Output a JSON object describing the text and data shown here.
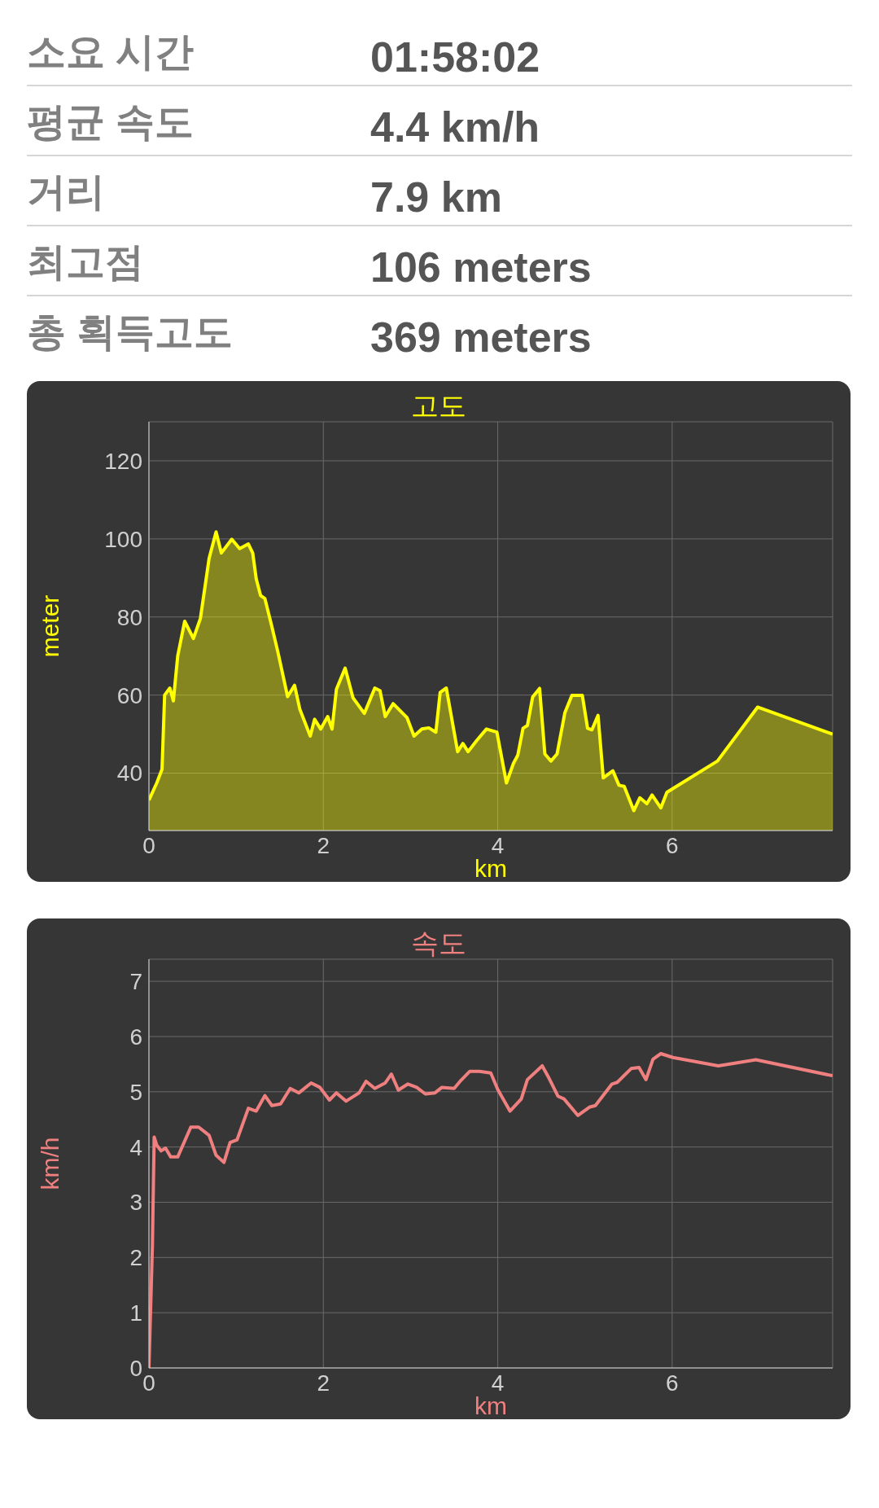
{
  "chart_data": [
    {
      "type": "other",
      "annotations": [
        "소요 시간",
        "01:58:02",
        "평균 속도",
        "4.4 km/h",
        "거리",
        "7.9 km",
        "최고점",
        "106 meters",
        "총 획득고도",
        "369 meters"
      ]
    },
    {
      "type": "area",
      "title": "고도",
      "xlabel": "km",
      "ylabel": "meter",
      "xlim": [
        0,
        7.84
      ],
      "xticks": [
        0,
        2,
        4,
        6
      ],
      "ylim": [
        25.3,
        130
      ],
      "yticks": [
        40,
        60,
        80,
        100,
        120
      ],
      "grid": true,
      "x": [
        0,
        0.09,
        0.15,
        0.18,
        0.24,
        0.28,
        0.33,
        0.41,
        0.51,
        0.59,
        0.69,
        0.77,
        0.83,
        0.95,
        1.04,
        1.14,
        1.19,
        1.23,
        1.28,
        1.33,
        1.41,
        1.48,
        1.59,
        1.67,
        1.73,
        1.85,
        1.9,
        1.97,
        2.05,
        2.1,
        2.15,
        2.25,
        2.34,
        2.47,
        2.59,
        2.65,
        2.71,
        2.8,
        2.96,
        3.04,
        3.13,
        3.21,
        3.29,
        3.34,
        3.41,
        3.54,
        3.6,
        3.66,
        3.76,
        3.87,
        3.99,
        4.1,
        4.18,
        4.23,
        4.29,
        4.34,
        4.4,
        4.48,
        4.54,
        4.61,
        4.68,
        4.77,
        4.85,
        4.97,
        5.03,
        5.08,
        5.15,
        5.21,
        5.32,
        5.39,
        5.45,
        5.56,
        5.63,
        5.71,
        5.77,
        5.87,
        5.94,
        6.52,
        6.98,
        7.84
      ],
      "series": [
        {
          "color": "#ffff00",
          "values": [
            33.1,
            37.5,
            41,
            60,
            61.8,
            58.5,
            70,
            78.9,
            74.5,
            79.6,
            95,
            101.8,
            96.4,
            99.9,
            97.5,
            98.7,
            96.4,
            89.8,
            85.5,
            84.7,
            77.5,
            70.9,
            59.6,
            62.5,
            56.4,
            49.5,
            53.8,
            51.3,
            54.5,
            51.3,
            61.5,
            66.9,
            59.3,
            55.3,
            61.8,
            61.1,
            54.5,
            57.8,
            54.2,
            49.5,
            51.3,
            51.6,
            50.5,
            60.7,
            61.8,
            45.5,
            47.6,
            45.5,
            48.4,
            51.3,
            50.5,
            37.5,
            42.5,
            44.6,
            51.5,
            52.2,
            59.5,
            61.7,
            44.9,
            43.1,
            44.9,
            55.5,
            59.9,
            59.9,
            51.5,
            51.1,
            54.8,
            38.8,
            40.6,
            36.9,
            36.6,
            30.4,
            33.7,
            32.2,
            34.4,
            31.1,
            35.1,
            43.1,
            56.9,
            50
          ]
        }
      ]
    },
    {
      "type": "line",
      "title": "속도",
      "xlabel": "km",
      "ylabel": "km/h",
      "xlim": [
        0,
        7.84
      ],
      "xticks": [
        0,
        2,
        4,
        6
      ],
      "ylim": [
        0,
        7.4
      ],
      "yticks": [
        0,
        1,
        2,
        3,
        4,
        5,
        6,
        7
      ],
      "grid": true,
      "x": [
        0,
        0.04,
        0.06,
        0.09,
        0.14,
        0.19,
        0.25,
        0.33,
        0.48,
        0.57,
        0.69,
        0.77,
        0.86,
        0.93,
        1.01,
        1.14,
        1.23,
        1.33,
        1.41,
        1.51,
        1.62,
        1.72,
        1.86,
        1.96,
        2.07,
        2.15,
        2.26,
        2.41,
        2.49,
        2.59,
        2.71,
        2.78,
        2.86,
        2.97,
        3.07,
        3.17,
        3.28,
        3.36,
        3.5,
        3.58,
        3.68,
        3.79,
        3.92,
        4,
        4.14,
        4.27,
        4.34,
        4.51,
        4.59,
        4.69,
        4.76,
        4.92,
        5.05,
        5.12,
        5.31,
        5.37,
        5.53,
        5.62,
        5.7,
        5.78,
        5.87,
        6.01,
        6.53,
        6.96,
        7.84
      ],
      "series": [
        {
          "color": "#f08080",
          "values": [
            0,
            2.23,
            4.18,
            4.03,
            3.93,
            3.98,
            3.82,
            3.82,
            4.36,
            4.36,
            4.21,
            3.85,
            3.72,
            4.08,
            4.13,
            4.7,
            4.65,
            4.93,
            4.75,
            4.78,
            5.06,
            4.98,
            5.16,
            5.08,
            4.85,
            4.98,
            4.83,
            4.98,
            5.19,
            5.06,
            5.16,
            5.32,
            5.03,
            5.14,
            5.08,
            4.96,
            4.98,
            5.08,
            5.06,
            5.21,
            5.37,
            5.37,
            5.34,
            5.04,
            4.65,
            4.87,
            5.22,
            5.47,
            5.24,
            4.92,
            4.87,
            4.57,
            4.72,
            4.75,
            5.14,
            5.17,
            5.42,
            5.44,
            5.22,
            5.59,
            5.69,
            5.62,
            5.47,
            5.58,
            5.29
          ]
        }
      ]
    }
  ]
}
